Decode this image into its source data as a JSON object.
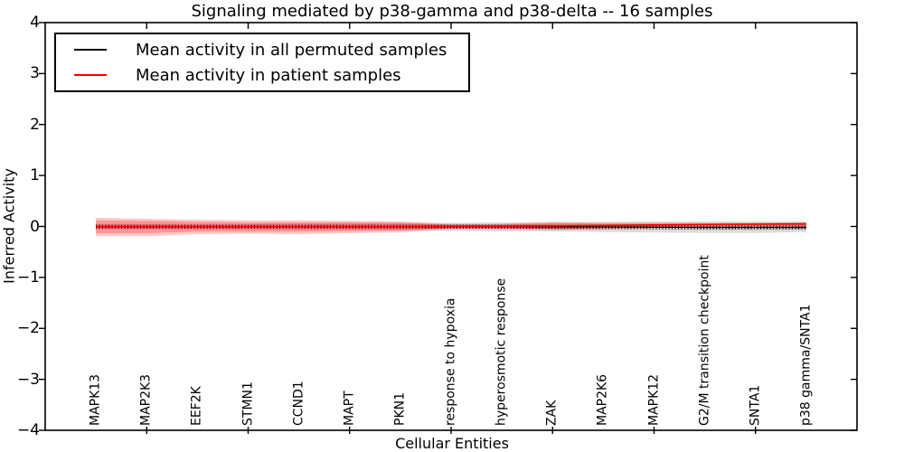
{
  "title": "Signaling mediated by p38-gamma and p38-delta -- 16 samples",
  "axes": {
    "xlabel": "Cellular Entities",
    "ylabel": "Inferred Activity",
    "yticks": [
      "4",
      "3",
      "2",
      "1",
      "0",
      "−1",
      "−2",
      "−3",
      "−4"
    ],
    "ytick_values": [
      4,
      3,
      2,
      1,
      0,
      -1,
      -2,
      -3,
      -4
    ],
    "ylim": [
      -4,
      4
    ],
    "xlim": [
      0,
      16
    ]
  },
  "legend": {
    "position": "upper left",
    "items": [
      {
        "label": "Mean activity in all permuted samples",
        "color": "#000000"
      },
      {
        "label": "Mean activity in patient samples",
        "color": "#ff0000"
      }
    ]
  },
  "colors": {
    "frame": "#000000",
    "permuted_line": "#000000",
    "patient_line": "#ff0000",
    "permuted_band": "rgba(0,0,0,0.13)",
    "permuted_inner_band": "rgba(0,0,0,0.07)",
    "patient_band": "rgba(255,0,0,0.22)",
    "patient_inner_band": "rgba(255,0,0,0.25)"
  },
  "chart_data": {
    "type": "line",
    "title": "Signaling mediated by p38-gamma and p38-delta -- 16 samples",
    "xlabel": "Cellular Entities",
    "ylabel": "Inferred Activity",
    "ylim": [
      -4,
      4
    ],
    "xlim": [
      0,
      16
    ],
    "grid": false,
    "legend_position": "upper left",
    "categories": [
      "MAPK13",
      "MAP2K3",
      "EEF2K",
      "STMN1",
      "CCND1",
      "MAPT",
      "PKN1",
      "response to hypoxia",
      "hyperosmotic response",
      "ZAK",
      "MAP2K6",
      "MAPK12",
      "G2/M transition checkpoint",
      "SNTA1",
      "p38 gamma/SNTA1"
    ],
    "x": [
      1,
      2,
      3,
      4,
      5,
      6,
      7,
      8,
      9,
      10,
      11,
      12,
      13,
      14,
      15
    ],
    "xticks_marks_at": [
      2,
      4,
      6,
      8,
      10,
      12,
      14
    ],
    "series": [
      {
        "name": "Mean activity in all permuted samples",
        "color": "#000000",
        "marker": "plus",
        "values": [
          -0.005,
          -0.005,
          -0.005,
          -0.005,
          -0.005,
          -0.005,
          -0.005,
          -0.005,
          -0.005,
          -0.01,
          -0.01,
          -0.015,
          -0.02,
          -0.02,
          -0.02
        ],
        "band_upper": [
          0.05,
          0.05,
          0.05,
          0.05,
          0.06,
          0.06,
          0.07,
          0.07,
          0.08,
          0.08,
          0.09,
          0.1,
          0.1,
          0.1,
          0.09
        ],
        "band_lower": [
          -0.06,
          -0.06,
          -0.06,
          -0.06,
          -0.07,
          -0.07,
          -0.08,
          -0.09,
          -0.1,
          -0.1,
          -0.11,
          -0.12,
          -0.13,
          -0.13,
          -0.11
        ],
        "inner_band_upper": [
          0.03,
          0.03,
          0.03,
          0.03,
          0.04,
          0.04,
          0.04,
          0.04,
          0.05,
          0.05,
          0.05,
          0.06,
          0.06,
          0.06,
          0.05
        ],
        "inner_band_lower": [
          -0.04,
          -0.04,
          -0.04,
          -0.04,
          -0.04,
          -0.04,
          -0.05,
          -0.05,
          -0.06,
          -0.06,
          -0.07,
          -0.07,
          -0.08,
          -0.08,
          -0.07
        ]
      },
      {
        "name": "Mean activity in patient samples",
        "color": "#ff0000",
        "marker": "none",
        "values": [
          0.0,
          0.0,
          0.0,
          0.0,
          0.0,
          0.0,
          0.0,
          0.005,
          0.005,
          0.01,
          0.02,
          0.03,
          0.04,
          0.045,
          0.05
        ],
        "band_upper": [
          0.17,
          0.15,
          0.13,
          0.12,
          0.12,
          0.11,
          0.1,
          0.05,
          0.05,
          0.09,
          0.07,
          0.07,
          0.07,
          0.07,
          0.09
        ],
        "band_lower": [
          -0.19,
          -0.19,
          -0.15,
          -0.14,
          -0.15,
          -0.13,
          -0.12,
          -0.05,
          -0.05,
          -0.07,
          -0.05,
          -0.03,
          -0.02,
          -0.02,
          -0.04
        ],
        "inner_band_upper": [
          0.12,
          0.11,
          0.09,
          0.08,
          0.08,
          0.08,
          0.07,
          0.03,
          0.03,
          0.06,
          0.05,
          0.05,
          0.05,
          0.05,
          0.07
        ],
        "inner_band_lower": [
          -0.13,
          -0.13,
          -0.1,
          -0.1,
          -0.1,
          -0.09,
          -0.08,
          -0.03,
          -0.03,
          -0.05,
          -0.03,
          -0.01,
          -0.01,
          0.0,
          -0.01
        ]
      }
    ]
  }
}
